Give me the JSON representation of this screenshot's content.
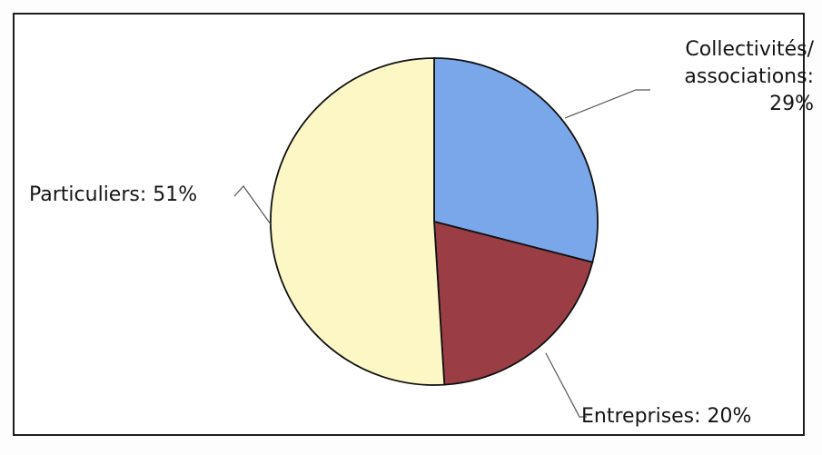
{
  "chart_data": {
    "type": "pie",
    "title": "",
    "slices": [
      {
        "label": "Collectivités/ associations",
        "value": 29,
        "value_text": "29%",
        "color": "#7aa6ea"
      },
      {
        "label": "Entreprises",
        "value": 20,
        "value_text": "20%",
        "color": "#9a3d45"
      },
      {
        "label": "Particuliers",
        "value": 51,
        "value_text": "51%",
        "color": "#fdf7c6"
      }
    ],
    "labels": {
      "collectivites_line1": "Collectivités/",
      "collectivites_line2": "associations:",
      "collectivites_line3": "29%",
      "entreprises": "Entreprises: 20%",
      "particuliers": "Particuliers: 51%"
    },
    "legend": "none",
    "grid": false
  }
}
